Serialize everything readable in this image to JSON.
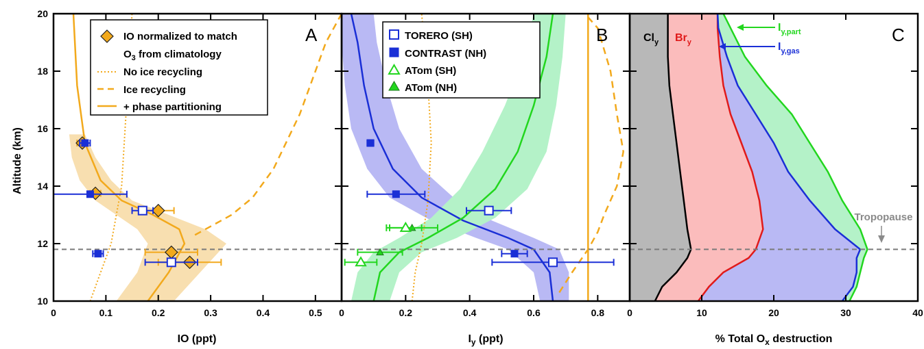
{
  "chart_data": [
    {
      "panel": "A",
      "type": "line",
      "xlabel": "IO (ppt)",
      "ylabel": "Altitude (km)",
      "xlim": [
        0,
        0.55
      ],
      "ylim": [
        10,
        20
      ],
      "xticks": [
        "0",
        "0.1",
        "0.2",
        "0.3",
        "0.4",
        "0.5"
      ],
      "yticks": [
        "10",
        "12",
        "14",
        "16",
        "18",
        "20"
      ],
      "legend": {
        "entries": [
          "IO normalized to match",
          "O3 from climatology",
          "No ice recycling",
          "Ice recycling",
          "+ phase partitioning"
        ],
        "o3_main": "O",
        "o3_sub": "3",
        "o3_rest": " from climatology"
      },
      "series": [
        {
          "name": "No ice recycling",
          "style": "dotted",
          "color": "#f2a91c",
          "x": [
            0.07,
            0.08,
            0.09,
            0.1,
            0.11,
            0.12,
            0.13,
            0.135,
            0.14,
            0.15
          ],
          "y": [
            10,
            10.5,
            11,
            11.5,
            12,
            13,
            14,
            15.5,
            17,
            20
          ]
        },
        {
          "name": "Ice recycling",
          "style": "dashed",
          "color": "#f2a91c",
          "x": [
            0.27,
            0.3,
            0.34,
            0.38,
            0.42,
            0.47,
            0.52,
            0.55
          ],
          "y": [
            12.3,
            12.6,
            13.0,
            13.6,
            14.6,
            16.5,
            19.0,
            20
          ]
        },
        {
          "name": "+ phase partitioning",
          "style": "solid",
          "color": "#f2a91c",
          "x": [
            0.18,
            0.22,
            0.25,
            0.24,
            0.19,
            0.13,
            0.09,
            0.06,
            0.045,
            0.038
          ],
          "y": [
            10,
            11,
            12,
            12.5,
            13,
            13.5,
            14.2,
            15.5,
            17.5,
            20
          ]
        },
        {
          "name": "IO normalized",
          "type": "scatter",
          "marker": "diamond",
          "color": "#f2a91c",
          "x": [
            0.055,
            0.08,
            0.2,
            0.225,
            0.26
          ],
          "y": [
            15.5,
            13.75,
            13.15,
            11.7,
            11.35
          ],
          "xerr": [
            0.01,
            0.01,
            0.03,
            0.05,
            0.06
          ]
        },
        {
          "name": "TORERO (SH)",
          "type": "scatter",
          "marker": "open-square",
          "color": "#1a2fd6",
          "x": [
            0.17,
            0.225
          ],
          "y": [
            13.15,
            11.35
          ],
          "xerr": [
            0.02,
            0.05
          ]
        },
        {
          "name": "CONTRAST (NH)",
          "type": "scatter",
          "marker": "square",
          "color": "#1a2fd6",
          "x": [
            0.06,
            0.07,
            0.085
          ],
          "y": [
            15.5,
            13.72,
            11.65
          ],
          "xerr": [
            0.01,
            0.07,
            0.01
          ]
        }
      ],
      "band": {
        "color": "#f8dfb0",
        "upper_x": [
          0.23,
          0.28,
          0.33,
          0.29,
          0.22,
          0.15,
          0.11,
          0.08,
          0.06
        ],
        "lower_x": [
          0.12,
          0.16,
          0.18,
          0.16,
          0.12,
          0.08,
          0.05,
          0.035,
          0.03
        ],
        "y": [
          10,
          11,
          12,
          12.5,
          13,
          13.5,
          14.2,
          15,
          15.8
        ]
      },
      "hline": 11.8,
      "label": "A"
    },
    {
      "panel": "B",
      "type": "line",
      "xlabel_main": "I",
      "xlabel_sub": "y",
      "xlabel_rest": " (ppt)",
      "xlim": [
        0,
        0.9
      ],
      "ylim": [
        10,
        20
      ],
      "xticks": [
        "0",
        "0.2",
        "0.4",
        "0.6",
        "0.8"
      ],
      "legend": {
        "entries": [
          "TORERO (SH)",
          "CONTRAST (NH)",
          "ATom (SH)",
          "ATom (NH)"
        ]
      },
      "series": [
        {
          "name": "blue model",
          "style": "solid",
          "color": "#1a2fd6",
          "x": [
            0.66,
            0.65,
            0.6,
            0.52,
            0.38,
            0.25,
            0.16,
            0.1,
            0.07,
            0.05,
            0.03
          ],
          "y": [
            10,
            11,
            11.8,
            12.2,
            12.8,
            13.6,
            14.6,
            16,
            17.5,
            19,
            20
          ]
        },
        {
          "name": "green model",
          "style": "solid",
          "color": "#22d61e",
          "x": [
            0.1,
            0.12,
            0.18,
            0.27,
            0.38,
            0.48,
            0.55,
            0.6,
            0.64,
            0.66
          ],
          "y": [
            10,
            11,
            11.7,
            12.2,
            12.9,
            13.9,
            15.2,
            16.8,
            18.5,
            20
          ]
        },
        {
          "name": "dotted",
          "style": "dotted",
          "color": "#f2a91c",
          "x": [
            0.22,
            0.23,
            0.25,
            0.27,
            0.28,
            0.27,
            0.25
          ],
          "y": [
            10,
            11,
            12,
            13.5,
            15.5,
            17.5,
            20
          ]
        },
        {
          "name": "dashed",
          "style": "dashed",
          "color": "#f2a91c",
          "x": [
            0.68,
            0.72,
            0.77,
            0.8,
            0.82,
            0.84,
            0.86,
            0.88,
            0.86,
            0.84,
            0.8,
            0.76
          ],
          "y": [
            10.3,
            11,
            11.8,
            12.4,
            13,
            13.5,
            14,
            15.2,
            16.5,
            18,
            19.5,
            20
          ]
        },
        {
          "name": "vertical",
          "style": "solid",
          "color": "#f2a91c",
          "x": [
            0.77,
            0.77
          ],
          "y": [
            10,
            20
          ]
        },
        {
          "name": "TORERO (SH)",
          "type": "scatter",
          "marker": "open-square",
          "color": "#1a2fd6",
          "x": [
            0.46,
            0.66
          ],
          "y": [
            13.15,
            11.35
          ],
          "xerr": [
            0.07,
            0.19
          ]
        },
        {
          "name": "CONTRAST (NH)",
          "type": "scatter",
          "marker": "square",
          "color": "#1a2fd6",
          "x": [
            0.09,
            0.17,
            0.54
          ],
          "y": [
            15.5,
            13.72,
            11.65
          ],
          "xerr": [
            0.01,
            0.09,
            0.04
          ]
        },
        {
          "name": "ATom (SH)",
          "type": "scatter",
          "marker": "open-triangle",
          "color": "#22d61e",
          "x": [
            0.06
          ],
          "y": [
            11.35
          ],
          "xerr": [
            0.05
          ]
        },
        {
          "name": "ATom (NH)",
          "type": "scatter",
          "marker": "triangle",
          "color": "#22d61e",
          "x": [
            0.22,
            0.12
          ],
          "y": [
            12.55,
            11.7
          ],
          "xerr": [
            0.08,
            0.07
          ]
        },
        {
          "name": "ATom (SH) small",
          "type": "scatter",
          "marker": "open-triangle",
          "color": "#22d61e",
          "x": [
            0.2
          ],
          "y": [
            12.55
          ],
          "xerr": [
            0.05
          ]
        }
      ],
      "bands": [
        {
          "color": "#b9b9f4",
          "upper_x": [
            0.71,
            0.71,
            0.68,
            0.6,
            0.47,
            0.35,
            0.25,
            0.18,
            0.14,
            0.11,
            0.1
          ],
          "lower_x": [
            0.62,
            0.6,
            0.52,
            0.42,
            0.28,
            0.15,
            0.08,
            0.03,
            0.01,
            0.0,
            0.0
          ],
          "y": [
            10,
            11,
            11.8,
            12.2,
            12.8,
            13.6,
            14.6,
            16,
            17.5,
            19,
            20
          ]
        },
        {
          "color": "#b4f2c8",
          "upper_x": [
            0.15,
            0.18,
            0.25,
            0.36,
            0.48,
            0.58,
            0.64,
            0.67,
            0.69,
            0.7
          ],
          "lower_x": [
            0.03,
            0.05,
            0.1,
            0.18,
            0.28,
            0.37,
            0.44,
            0.51,
            0.57,
            0.6
          ],
          "y": [
            10,
            11,
            11.7,
            12.2,
            12.9,
            13.9,
            15.2,
            16.8,
            18.5,
            20
          ]
        }
      ],
      "hline": 11.8,
      "label": "B"
    },
    {
      "panel": "C",
      "type": "area",
      "xlabel_main": "% Total O",
      "xlabel_sub": "x",
      "xlabel_rest": " destruction",
      "xlim": [
        0,
        40
      ],
      "ylim": [
        10,
        20
      ],
      "xticks": [
        "0",
        "10",
        "20",
        "30",
        "40"
      ],
      "y": [
        10,
        10.5,
        11,
        11.5,
        11.8,
        12.5,
        13.5,
        14.5,
        15.5,
        16.5,
        17.5,
        18.5,
        19.5,
        20
      ],
      "series": [
        {
          "name": "Cly",
          "color": "#b8b8b8",
          "line": "#000000",
          "x": [
            3.5,
            4.5,
            6.5,
            8.0,
            8.5,
            8.0,
            7.5,
            7.0,
            6.5,
            6.0,
            5.5,
            5.3,
            5.3,
            5.3
          ]
        },
        {
          "name": "Bry",
          "color": "#fbbcbc",
          "line": "#e01a1a",
          "x": [
            9.5,
            11.0,
            13.0,
            16.5,
            17.5,
            18.5,
            18.0,
            17.0,
            15.5,
            14.0,
            13.0,
            12.5,
            12.2,
            12.2
          ]
        },
        {
          "name": "Iy,gas",
          "color": "#b9b9f4",
          "line": "#1a2fd6",
          "x": [
            29.5,
            31.0,
            31.5,
            31.5,
            32.0,
            28.5,
            25.0,
            22.0,
            20.0,
            17.5,
            15.0,
            13.5,
            12.3,
            12.2
          ]
        },
        {
          "name": "Iy,part",
          "color": "#b4f2c8",
          "line": "#22d61e",
          "x": [
            30.5,
            31.5,
            32.0,
            32.5,
            33.0,
            32.0,
            29.5,
            27.5,
            25.0,
            22.5,
            19.0,
            16.0,
            14.0,
            13.0
          ]
        }
      ],
      "labels": {
        "cl_main": "Cl",
        "cl_sub": "y",
        "br_main": "Br",
        "br_sub": "y",
        "ipart_main": "I",
        "ipart_sub": "y,part",
        "igas_main": "I",
        "igas_sub": "y,gas",
        "tropopause": "Tropopause"
      },
      "hline": 11.8,
      "label": "C"
    }
  ]
}
